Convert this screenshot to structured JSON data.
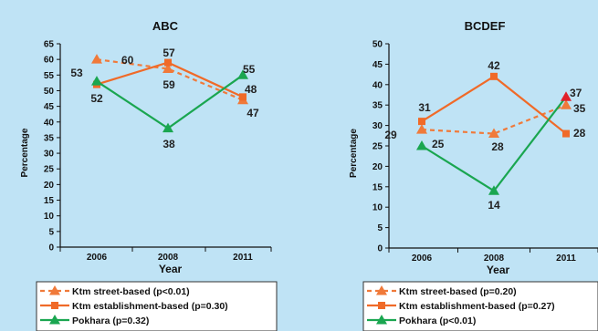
{
  "chart_data": [
    {
      "type": "line",
      "title": "ABC",
      "xlabel": "Year",
      "ylabel": "Percentage",
      "categories": [
        "2006",
        "2008",
        "2011"
      ],
      "ylim": [
        0,
        65
      ],
      "yticks": [
        0,
        5,
        10,
        15,
        20,
        25,
        30,
        35,
        40,
        45,
        50,
        55,
        60,
        65
      ],
      "grid": false,
      "legend": "bottom",
      "series": [
        {
          "name": "Ktm street-based (p<0.01)",
          "values": [
            60,
            57,
            47
          ],
          "color": "#f07a3a",
          "style": "dashed",
          "marker": "triangle"
        },
        {
          "name": "Ktm establishment-based (p=0.30)",
          "values": [
            52,
            59,
            48
          ],
          "color": "#f06a28",
          "style": "solid",
          "marker": "square"
        },
        {
          "name": "Pokhara (p=0.32)",
          "values": [
            53,
            38,
            55
          ],
          "color": "#1aa650",
          "style": "solid",
          "marker": "triangle"
        }
      ]
    },
    {
      "type": "line",
      "title": "BCDEF",
      "xlabel": "Year",
      "ylabel": "Percentage",
      "categories": [
        "2006",
        "2008",
        "2011"
      ],
      "ylim": [
        0,
        50
      ],
      "yticks": [
        0,
        5,
        10,
        15,
        20,
        25,
        30,
        35,
        40,
        45,
        50
      ],
      "grid": false,
      "legend": "bottom",
      "series": [
        {
          "name": "Ktm street-based (p=0.20)",
          "values": [
            29,
            28,
            35
          ],
          "color": "#f07a3a",
          "style": "dashed",
          "marker": "triangle"
        },
        {
          "name": "Ktm establishment-based (p=0.27)",
          "values": [
            31,
            42,
            28
          ],
          "color": "#f06a28",
          "style": "solid",
          "marker": "square"
        },
        {
          "name": "Pokhara (p<0.01)",
          "values": [
            25,
            14,
            37
          ],
          "color": "#1aa650",
          "style": "solid",
          "marker": "triangle",
          "last_marker_color": "#e0202a"
        }
      ]
    }
  ]
}
